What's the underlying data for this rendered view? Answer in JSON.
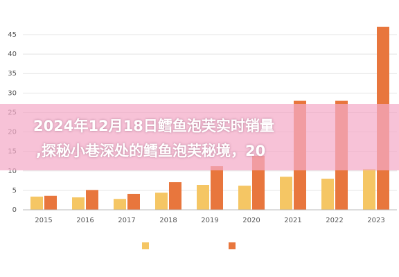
{
  "chart_data": {
    "type": "bar",
    "categories": [
      "2015",
      "2016",
      "2017",
      "2018",
      "2019",
      "2020",
      "2021",
      "2022",
      "2023"
    ],
    "series": [
      {
        "color": "#f5c664",
        "values": [
          3.4,
          3.2,
          2.8,
          4.4,
          6.4,
          6.2,
          8.5,
          8,
          10.5
        ]
      },
      {
        "color": "#e8763d",
        "values": [
          3.6,
          5.1,
          4.1,
          7.1,
          11.2,
          13.9,
          28,
          28,
          47
        ]
      }
    ],
    "ylim": [
      0,
      47.5
    ],
    "yticks": [
      0,
      5,
      10,
      15,
      20,
      25,
      30,
      35,
      40,
      45
    ],
    "grid": true
  },
  "banner": {
    "lines": [
      "2024年12月18日鳕鱼泡芙实时销量",
      ",探秘小巷深处的鳕鱼泡芙秘境，20"
    ]
  }
}
